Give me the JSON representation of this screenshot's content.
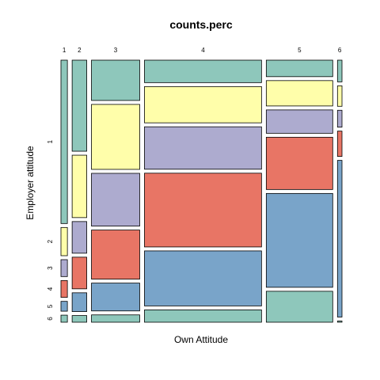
{
  "chart_data": {
    "type": "mosaic",
    "title": "counts.perc",
    "xlabel": "Own Attitude",
    "ylabel": "Employer attitude",
    "x_categories": [
      "1",
      "2",
      "3",
      "4",
      "5",
      "6"
    ],
    "y_categories": [
      "1",
      "2",
      "3",
      "4",
      "5",
      "6"
    ],
    "cell_colors": [
      "#8ec7bb",
      "#fffeaa",
      "#adabcf",
      "#e87565",
      "#79a4c9",
      "#8ec7bb"
    ],
    "column_widths": [
      0.03,
      0.068,
      0.225,
      0.546,
      0.31,
      0.021
    ],
    "proportions": [
      [
        0.648,
        0.112,
        0.067,
        0.067,
        0.039,
        0.028
      ],
      [
        0.397,
        0.272,
        0.138,
        0.138,
        0.082,
        0.029
      ],
      [
        0.165,
        0.266,
        0.216,
        0.201,
        0.114,
        0.03
      ],
      [
        0.091,
        0.147,
        0.172,
        0.299,
        0.223,
        0.05
      ],
      [
        0.065,
        0.1,
        0.092,
        0.206,
        0.37,
        0.122
      ],
      [
        0.09,
        0.085,
        0.07,
        0.105,
        0.65,
        0.005
      ]
    ],
    "border_color": "#000000"
  }
}
